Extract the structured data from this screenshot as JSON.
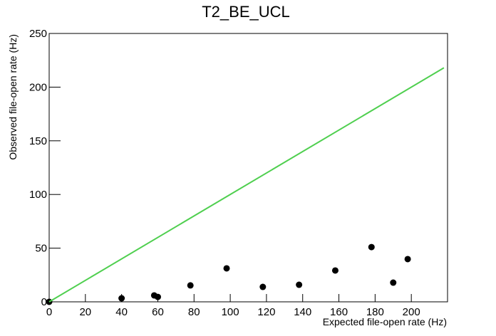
{
  "chart_data": {
    "type": "scatter",
    "title": "T2_BE_UCL",
    "x_label": "Expected file-open rate (Hz)",
    "y_label": "Observed file-open rate (Hz)",
    "series": [
      {
        "style": "markers",
        "color": "#000000",
        "x": [
          0,
          40,
          58,
          60,
          78,
          98,
          118,
          138,
          158,
          178,
          190,
          198
        ],
        "values": [
          0,
          3.3,
          6,
          4.6,
          15.3,
          31.2,
          13.9,
          15.9,
          29.2,
          51,
          17.9,
          39.8
        ]
      },
      {
        "style": "line",
        "color": "#4fcf4f",
        "x": [
          0,
          218
        ],
        "values": [
          0,
          218
        ]
      }
    ],
    "xlim": [
      0,
      220
    ],
    "ylim": [
      0,
      250
    ],
    "xticks": [
      0,
      20,
      40,
      60,
      80,
      100,
      120,
      140,
      160,
      180,
      200
    ],
    "yticks": [
      0,
      50,
      100,
      150,
      200,
      250
    ]
  }
}
